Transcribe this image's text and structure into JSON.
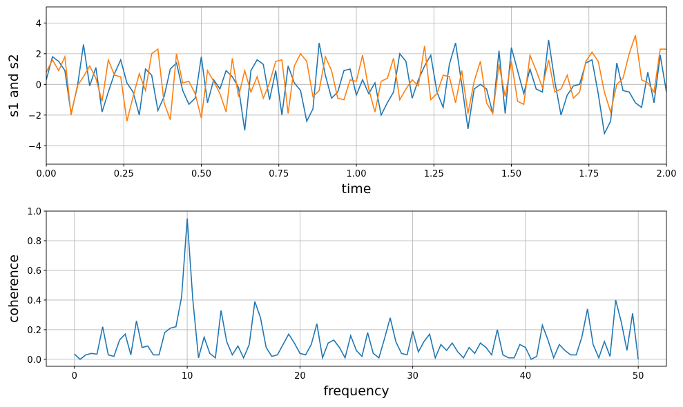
{
  "chart_data": [
    {
      "type": "line",
      "xlabel": "time",
      "ylabel": "s1 and s2",
      "x": [
        0,
        0.02,
        0.04,
        0.06,
        0.08,
        0.1,
        0.12,
        0.14,
        0.16,
        0.18,
        0.2,
        0.22,
        0.24,
        0.26,
        0.28,
        0.3,
        0.32,
        0.34,
        0.36,
        0.38,
        0.4,
        0.42,
        0.44,
        0.46,
        0.48,
        0.5,
        0.52,
        0.54,
        0.56,
        0.58,
        0.6,
        0.62,
        0.64,
        0.66,
        0.68,
        0.7,
        0.72,
        0.74,
        0.76,
        0.78,
        0.8,
        0.82,
        0.84,
        0.86,
        0.88,
        0.9,
        0.92,
        0.94,
        0.96,
        0.98,
        1,
        1.02,
        1.04,
        1.06,
        1.08,
        1.1,
        1.12,
        1.14,
        1.16,
        1.18,
        1.2,
        1.22,
        1.24,
        1.26,
        1.28,
        1.3,
        1.32,
        1.34,
        1.36,
        1.38,
        1.4,
        1.42,
        1.44,
        1.46,
        1.48,
        1.5,
        1.52,
        1.54,
        1.56,
        1.58,
        1.6,
        1.62,
        1.64,
        1.66,
        1.68,
        1.7,
        1.72,
        1.74,
        1.76,
        1.78,
        1.8,
        1.82,
        1.84,
        1.86,
        1.88,
        1.9,
        1.92,
        1.94,
        1.96,
        1.98,
        2
      ],
      "series": [
        {
          "color": "#1f77b4",
          "values": [
            0.3,
            1.8,
            1.5,
            0.9,
            -1.9,
            -0.2,
            2.6,
            -0.1,
            1.1,
            -1.8,
            -0.5,
            0.7,
            1.6,
            0.1,
            -0.5,
            -2.0,
            1.0,
            0.6,
            -1.7,
            -0.8,
            1.0,
            1.4,
            -0.4,
            -1.3,
            -0.9,
            1.8,
            -1.2,
            0.3,
            -0.3,
            0.9,
            0.5,
            -0.2,
            -3.0,
            0.9,
            1.6,
            1.3,
            -1.0,
            0.9,
            -2.0,
            1.2,
            0.1,
            -0.4,
            -2.4,
            -1.6,
            2.7,
            0.6,
            -0.9,
            -0.5,
            0.9,
            1.0,
            -0.7,
            0.3,
            -0.6,
            0.1,
            -2.0,
            -1.2,
            -0.5,
            2.0,
            1.5,
            -0.9,
            0.3,
            1.2,
            1.9,
            -0.5,
            -1.5,
            1.3,
            2.7,
            0.0,
            -2.9,
            -0.3,
            0.0,
            -0.3,
            -1.9,
            2.2,
            -1.9,
            2.4,
            0.9,
            -0.6,
            1.0,
            -0.3,
            -0.5,
            2.9,
            0.2,
            -2.0,
            -0.7,
            -0.1,
            0.0,
            1.4,
            1.6,
            -0.6,
            -3.2,
            -2.4,
            1.4,
            -0.4,
            -0.5,
            -1.2,
            -1.5,
            0.8,
            -1.2,
            1.9,
            -0.5
          ]
        },
        {
          "color": "#ff7f0e",
          "values": [
            0.8,
            1.6,
            0.9,
            1.8,
            -2.0,
            -0.1,
            0.5,
            1.2,
            0.4,
            -1.1,
            1.6,
            0.6,
            0.5,
            -2.4,
            -0.8,
            0.7,
            -0.4,
            2.0,
            2.3,
            -1.2,
            -2.3,
            2.0,
            0.1,
            0.2,
            -0.6,
            -2.2,
            0.9,
            0.2,
            -0.6,
            -1.8,
            1.7,
            -0.8,
            0.9,
            -0.5,
            0.5,
            -0.9,
            0.1,
            1.5,
            1.6,
            -1.9,
            1.2,
            2.0,
            1.5,
            -0.8,
            -0.4,
            1.8,
            0.9,
            -0.9,
            -1.0,
            0.3,
            0.2,
            1.9,
            -0.3,
            -1.8,
            0.2,
            0.4,
            1.7,
            -1.0,
            -0.3,
            0.3,
            -0.1,
            2.5,
            -1.0,
            -0.6,
            0.6,
            0.5,
            -1.2,
            0.9,
            -1.9,
            0.2,
            1.5,
            -1.2,
            -1.9,
            1.3,
            -0.8,
            1.5,
            -1.1,
            -1.3,
            1.9,
            0.9,
            -0.2,
            1.6,
            -0.5,
            -0.3,
            0.6,
            -0.9,
            -0.5,
            1.5,
            2.1,
            1.5,
            -0.5,
            -1.8,
            0.0,
            0.4,
            2.0,
            3.2,
            0.3,
            0.1,
            -0.5,
            2.3,
            2.3
          ]
        }
      ],
      "xlim": [
        0,
        2
      ],
      "ylim": [
        -5.2,
        5.05
      ],
      "xticks": [
        {
          "value": 0,
          "label": "0.00"
        },
        {
          "value": 0.25,
          "label": "0.25"
        },
        {
          "value": 0.5,
          "label": "0.50"
        },
        {
          "value": 0.75,
          "label": "0.75"
        },
        {
          "value": 1,
          "label": "1.00"
        },
        {
          "value": 1.25,
          "label": "1.25"
        },
        {
          "value": 1.5,
          "label": "1.50"
        },
        {
          "value": 1.75,
          "label": "1.75"
        },
        {
          "value": 2,
          "label": "2.00"
        }
      ],
      "yticks": [
        {
          "value": -4,
          "label": "−4"
        },
        {
          "value": -2,
          "label": "−2"
        },
        0,
        2,
        4
      ],
      "grid": true
    },
    {
      "type": "line",
      "xlabel": "frequency",
      "ylabel": "coherence",
      "x": [
        0,
        0.5,
        1,
        1.5,
        2,
        2.5,
        3,
        3.5,
        4,
        4.5,
        5,
        5.5,
        6,
        6.5,
        7,
        7.5,
        8,
        8.5,
        9,
        9.5,
        10,
        10.5,
        11,
        11.5,
        12,
        12.5,
        13,
        13.5,
        14,
        14.5,
        15,
        15.5,
        16,
        16.5,
        17,
        17.5,
        18,
        18.5,
        19,
        19.5,
        20,
        20.5,
        21,
        21.5,
        22,
        22.5,
        23,
        23.5,
        24,
        24.5,
        25,
        25.5,
        26,
        26.5,
        27,
        27.5,
        28,
        28.5,
        29,
        29.5,
        30,
        30.5,
        31,
        31.5,
        32,
        32.5,
        33,
        33.5,
        34,
        34.5,
        35,
        35.5,
        36,
        36.5,
        37,
        37.5,
        38,
        38.5,
        39,
        39.5,
        40,
        40.5,
        41,
        41.5,
        42,
        42.5,
        43,
        43.5,
        44,
        44.5,
        45,
        45.5,
        46,
        46.5,
        47,
        47.5,
        48,
        48.5,
        49,
        49.5,
        50
      ],
      "series": [
        {
          "color": "#1f77b4",
          "values": [
            0.035,
            0.0,
            0.03,
            0.04,
            0.035,
            0.22,
            0.03,
            0.02,
            0.13,
            0.17,
            0.03,
            0.26,
            0.08,
            0.09,
            0.03,
            0.03,
            0.18,
            0.21,
            0.22,
            0.42,
            0.95,
            0.4,
            0.01,
            0.15,
            0.04,
            0.01,
            0.33,
            0.12,
            0.03,
            0.09,
            0.01,
            0.1,
            0.39,
            0.28,
            0.08,
            0.02,
            0.03,
            0.1,
            0.17,
            0.11,
            0.04,
            0.03,
            0.1,
            0.24,
            0.01,
            0.11,
            0.13,
            0.08,
            0.01,
            0.16,
            0.06,
            0.02,
            0.18,
            0.04,
            0.01,
            0.14,
            0.28,
            0.12,
            0.04,
            0.03,
            0.19,
            0.05,
            0.12,
            0.17,
            0.01,
            0.1,
            0.06,
            0.11,
            0.05,
            0.01,
            0.08,
            0.04,
            0.11,
            0.08,
            0.03,
            0.2,
            0.03,
            0.01,
            0.01,
            0.1,
            0.08,
            0.0,
            0.02,
            0.23,
            0.13,
            0.01,
            0.1,
            0.06,
            0.03,
            0.03,
            0.15,
            0.34,
            0.1,
            0.01,
            0.12,
            0.02,
            0.4,
            0.25,
            0.06,
            0.31,
            0.0
          ]
        }
      ],
      "xlim": [
        -2.5,
        52.5
      ],
      "ylim": [
        -0.047,
        1.0
      ],
      "xticks": [
        0,
        10,
        20,
        30,
        40,
        50
      ],
      "yticks": [
        {
          "value": 0,
          "label": "0.0"
        },
        0.2,
        0.4,
        0.6,
        0.8,
        {
          "value": 1,
          "label": "1.0"
        }
      ],
      "grid": true
    }
  ]
}
